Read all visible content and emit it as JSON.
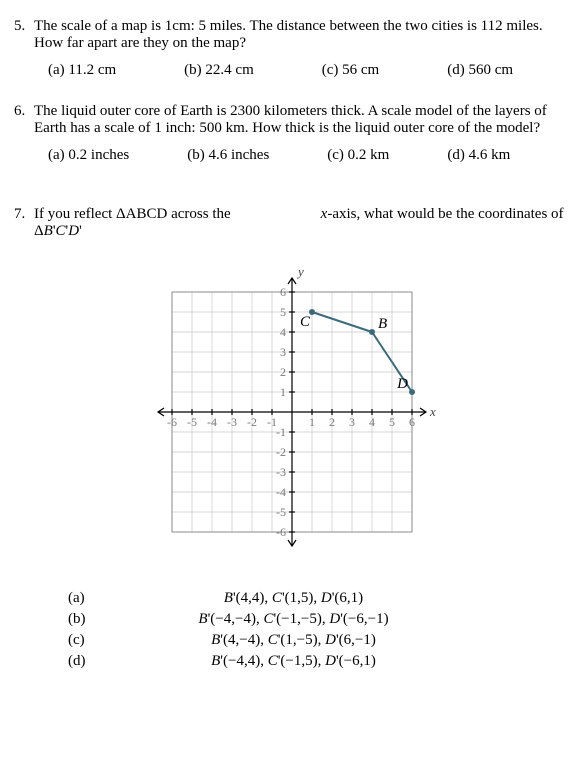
{
  "q5": {
    "num": "5.",
    "text": "The scale of a map is 1cm: 5 miles.  The distance between the two cities is 112 miles.  How far apart are they on the map?",
    "choices": [
      "(a) 11.2 cm",
      "(b) 22.4 cm",
      "(c) 56 cm",
      "(d) 560 cm"
    ]
  },
  "q6": {
    "num": "6.",
    "text": "The liquid outer core of Earth is 2300 kilometers thick.  A scale model of the layers of Earth has a scale of 1 inch: 500 km.  How thick is the liquid outer core of the model?",
    "choices": [
      "(a) 0.2 inches",
      "(b) 4.6 inches",
      "(c) 0.2 km",
      "(d) 4.6 km"
    ]
  },
  "q7": {
    "num": "7.",
    "left_line1": "If you reflect ΔABCD across the",
    "left_line2": "ΔB'C'D'",
    "right": "x-axis, what would be the coordinates of",
    "chart": {
      "type": "coordinate-grid",
      "xlim": [
        -6,
        6
      ],
      "ylim": [
        -6,
        6
      ],
      "tick_step": 1,
      "grid_color": "#c9c9c9",
      "axis_color": "#000000",
      "background_color": "#ffffff",
      "x_label": "x",
      "y_label": "y",
      "x_ticks_neg": [
        "-6",
        "-5",
        "-4",
        "-3",
        "-2",
        "-1"
      ],
      "x_ticks_pos": [
        "1",
        "2",
        "3",
        "4",
        "5",
        "6"
      ],
      "y_ticks_pos": [
        "1",
        "2",
        "3",
        "4",
        "5",
        "6"
      ],
      "y_ticks_neg": [
        "-1",
        "-2",
        "-3",
        "-4",
        "-5",
        "-6"
      ],
      "points": {
        "B": {
          "x": 4,
          "y": 4,
          "label": "B"
        },
        "C": {
          "x": 1,
          "y": 5,
          "label": "C"
        },
        "D": {
          "x": 6,
          "y": 1,
          "label": "D"
        }
      },
      "line_color": "#3a6b7c",
      "point_radius": 3
    },
    "answers": [
      {
        "key": "(a)",
        "val": "B'(4,4), C'(1,5), D'(6,1)"
      },
      {
        "key": "(b)",
        "val": "B'(−4,−4), C'(−1,−5), D'(−6,−1)"
      },
      {
        "key": "(c)",
        "val": "B'(4,−4), C'(1,−5), D'(6,−1)"
      },
      {
        "key": "(d)",
        "val": "B'(−4,4), C'(−1,5), D'(−6,1)"
      }
    ]
  }
}
